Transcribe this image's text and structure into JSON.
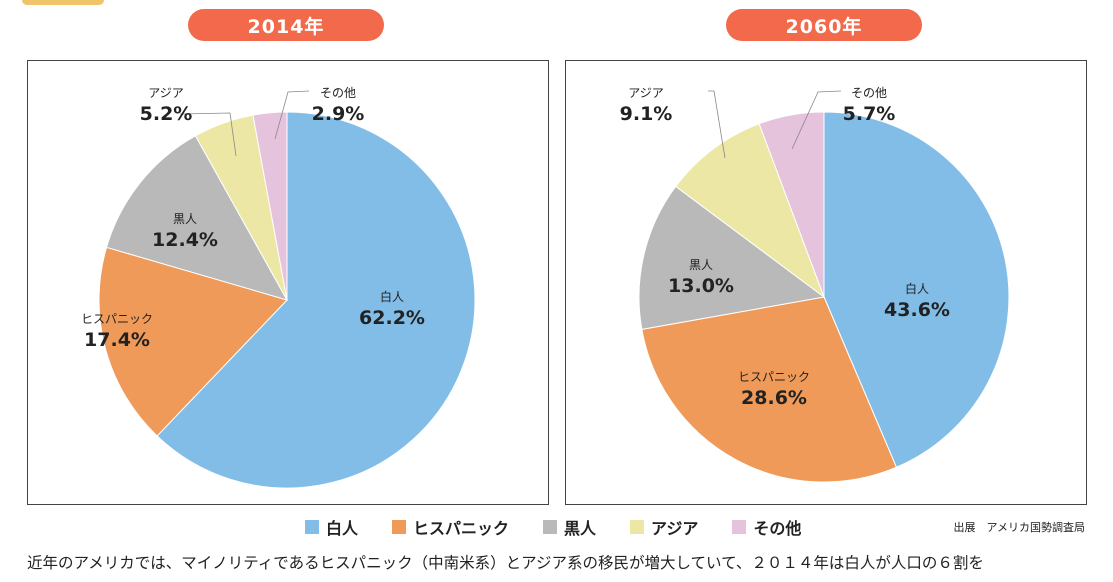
{
  "colors": {
    "accent": "#f26a4b",
    "white": "#82bde8",
    "hispanic": "#ef9a58",
    "black": "#b9b9b9",
    "asian": "#ece7a4",
    "other": "#e6c3dd"
  },
  "categories": [
    "白人",
    "ヒスパニック",
    "黒人",
    "アジア",
    "その他"
  ],
  "chart_data": [
    {
      "type": "pie",
      "title": "2014年",
      "slices": [
        {
          "label": "白人",
          "value": 62.2,
          "display": "62.2%"
        },
        {
          "label": "ヒスパニック",
          "value": 17.4,
          "display": "17.4%"
        },
        {
          "label": "黒人",
          "value": 12.4,
          "display": "12.4%"
        },
        {
          "label": "アジア",
          "value": 5.2,
          "display": "5.2%"
        },
        {
          "label": "その他",
          "value": 2.9,
          "display": "2.9%"
        }
      ]
    },
    {
      "type": "pie",
      "title": "2060年",
      "slices": [
        {
          "label": "白人",
          "value": 43.6,
          "display": "43.6%"
        },
        {
          "label": "ヒスパニック",
          "value": 28.6,
          "display": "28.6%"
        },
        {
          "label": "黒人",
          "value": 13.0,
          "display": "13.0%"
        },
        {
          "label": "アジア",
          "value": 9.1,
          "display": "9.1%"
        },
        {
          "label": "その他",
          "value": 5.7,
          "display": "5.7%"
        }
      ]
    }
  ],
  "legend": [
    {
      "label": "白人",
      "color": "#82bde8"
    },
    {
      "label": "ヒスパニック",
      "color": "#ef9a58"
    },
    {
      "label": "黒人",
      "color": "#b9b9b9"
    },
    {
      "label": "アジア",
      "color": "#ece7a4"
    },
    {
      "label": "その他",
      "color": "#e6c3dd"
    }
  ],
  "source": "出展　アメリカ国勢調査局",
  "caption": "近年のアメリカでは、マイノリティであるヒスパニック（中南米系）とアジア系の移民が増大していて、２０１４年は白人が人口の６割を"
}
